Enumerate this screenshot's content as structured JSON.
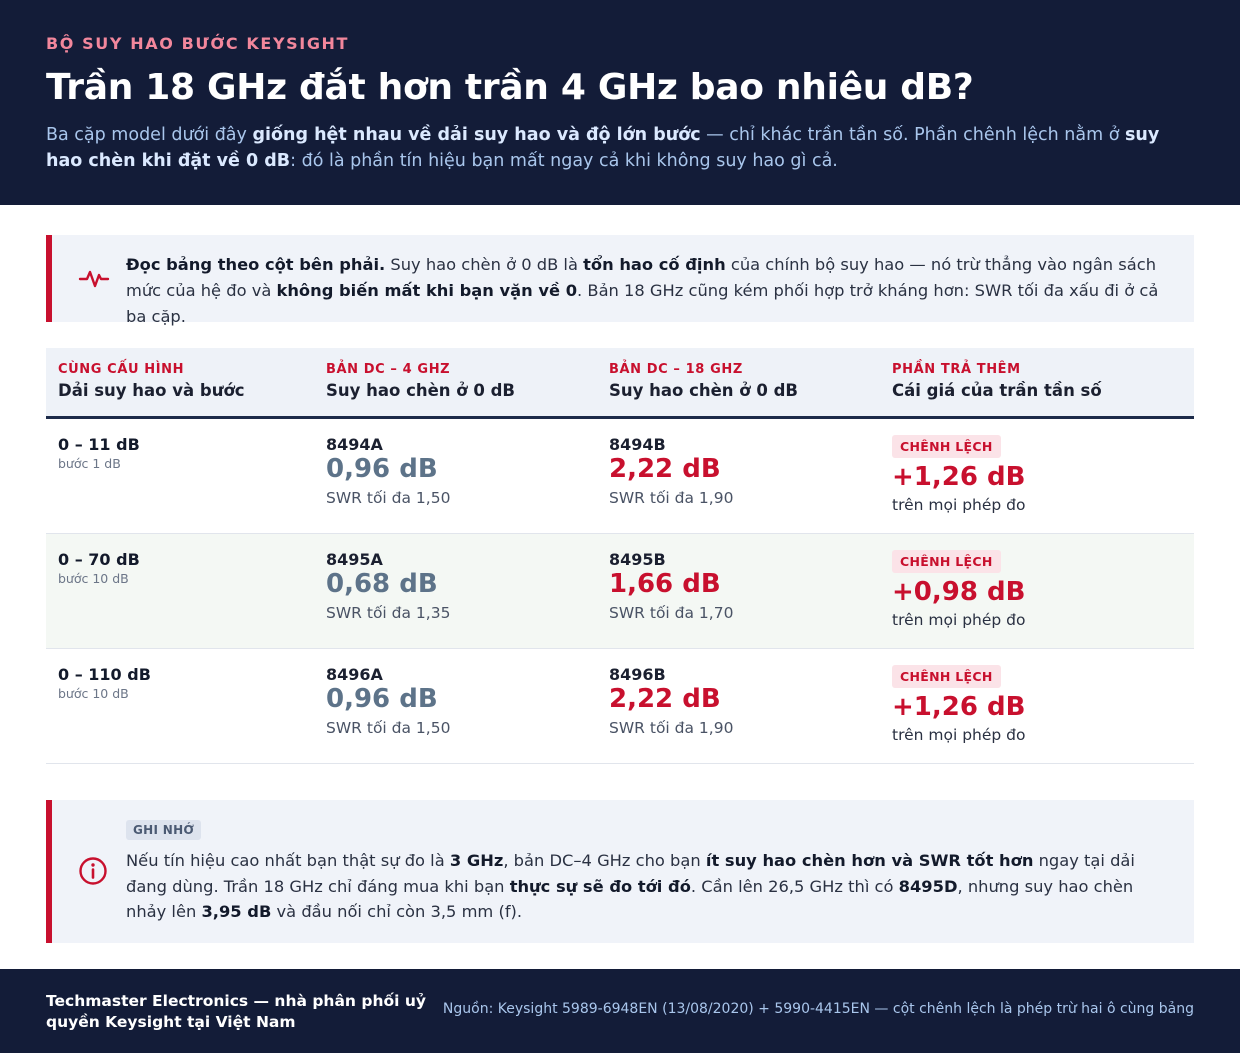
{
  "header": {
    "eyebrow": "BỘ SUY HAO BƯỚC KEYSIGHT",
    "title": "Trần 18 GHz đắt hơn trần 4 GHz bao nhiêu dB?",
    "intro": [
      {
        "t": "Ba cặp model dưới đây ",
        "b": false
      },
      {
        "t": "giống hệt nhau về dải suy hao và độ lớn bước",
        "b": true
      },
      {
        "t": " — chỉ khác trần tần số. Phần chênh lệch nằm ở ",
        "b": false
      },
      {
        "t": "suy hao chèn khi đặt về 0 dB",
        "b": true
      },
      {
        "t": ": đó là phần tín hiệu bạn mất ngay cả khi không suy hao gì cả.",
        "b": false
      }
    ]
  },
  "callout_read": {
    "icon": "pulse-icon",
    "text": [
      {
        "t": "Đọc bảng theo cột bên phải.",
        "b": true
      },
      {
        "t": " Suy hao chèn ở 0 dB là ",
        "b": false
      },
      {
        "t": "tổn hao cố định",
        "b": true
      },
      {
        "t": " của chính bộ suy hao — nó trừ thẳng vào ngân sách mức của hệ đo và ",
        "b": false
      },
      {
        "t": "không biến mất khi bạn vặn về 0",
        "b": true
      },
      {
        "t": ". Bản 18 GHz cũng kém phối hợp trở kháng hơn: SWR tối đa xấu đi ở cả ba cặp.",
        "b": false
      }
    ]
  },
  "table": {
    "headers": [
      {
        "top": "CÙNG CẤU HÌNH",
        "bottom": "Dải suy hao và bước"
      },
      {
        "top": "BẢN DC – 4 GHZ",
        "bottom": "Suy hao chèn ở 0 dB"
      },
      {
        "top": "BẢN DC – 18 GHZ",
        "bottom": "Suy hao chèn ở 0 dB"
      },
      {
        "top": "PHẦN TRẢ THÊM",
        "bottom": "Cái giá của trần tần số"
      }
    ],
    "rows": [
      {
        "range": "0 – 11 dB",
        "step": "bước 1 dB",
        "low_model": "8494A",
        "low_value": "0,96 dB",
        "low_swr": "SWR tối đa 1,50",
        "high_model": "8494B",
        "high_value": "2,22 dB",
        "high_swr": "SWR tối đa 1,90",
        "diff_label": "CHÊNH LỆCH",
        "diff_value": "+1,26 dB",
        "diff_note": "trên mọi phép đo"
      },
      {
        "range": "0 – 70 dB",
        "step": "bước 10 dB",
        "low_model": "8495A",
        "low_value": "0,68 dB",
        "low_swr": "SWR tối đa 1,35",
        "high_model": "8495B",
        "high_value": "1,66 dB",
        "high_swr": "SWR tối đa 1,70",
        "diff_label": "CHÊNH LỆCH",
        "diff_value": "+0,98 dB",
        "diff_note": "trên mọi phép đo"
      },
      {
        "range": "0 – 110 dB",
        "step": "bước 10 dB",
        "low_model": "8496A",
        "low_value": "0,96 dB",
        "low_swr": "SWR tối đa 1,50",
        "high_model": "8496B",
        "high_value": "2,22 dB",
        "high_swr": "SWR tối đa 1,90",
        "diff_label": "CHÊNH LỆCH",
        "diff_value": "+1,26 dB",
        "diff_note": "trên mọi phép đo"
      }
    ]
  },
  "callout_note": {
    "icon": "info-icon",
    "badge": "GHI NHỚ",
    "text": [
      {
        "t": "Nếu tín hiệu cao nhất bạn thật sự đo là ",
        "b": false
      },
      {
        "t": "3 GHz",
        "b": true
      },
      {
        "t": ", bản DC–4 GHz cho bạn ",
        "b": false
      },
      {
        "t": "ít suy hao chèn hơn và SWR tốt hơn",
        "b": true
      },
      {
        "t": " ngay tại dải đang dùng. Trần 18 GHz chỉ đáng mua khi bạn ",
        "b": false
      },
      {
        "t": "thực sự sẽ đo tới đó",
        "b": true
      },
      {
        "t": ". Cần lên 26,5 GHz thì có ",
        "b": false
      },
      {
        "t": "8495D",
        "b": true
      },
      {
        "t": ", nhưng suy hao chèn nhảy lên ",
        "b": false
      },
      {
        "t": "3,95 dB",
        "b": true
      },
      {
        "t": " và đầu nối chỉ còn 3,5 mm (f).",
        "b": false
      }
    ]
  },
  "footer": {
    "left": "Techmaster Electronics — nhà phân phối uỷ quyền Keysight tại Việt Nam",
    "right": "Nguồn: Keysight 5989-6948EN (13/08/2020) + 5990-4415EN — cột chênh lệch là phép trừ hai ô cùng bảng"
  },
  "colors": {
    "navy": "#131c38",
    "accent_red": "#c8102e",
    "muted_blue": "#5d7389"
  }
}
